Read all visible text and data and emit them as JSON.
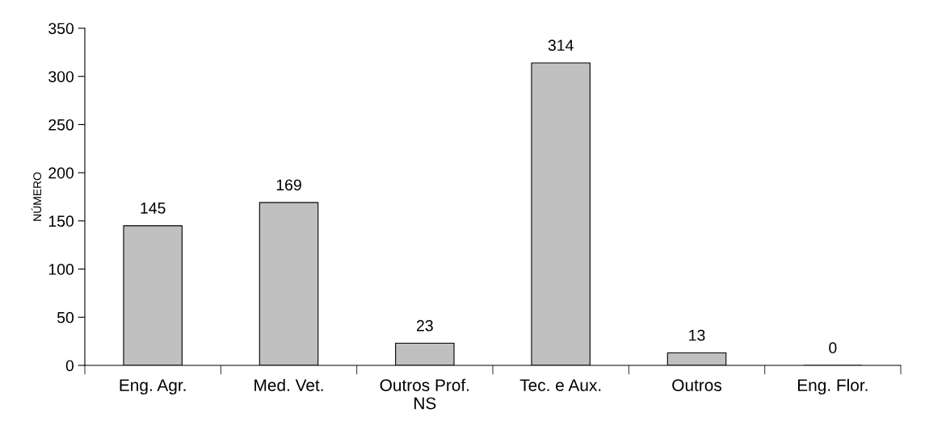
{
  "chart_data": {
    "type": "bar",
    "ylabel": "NÚMERO",
    "categories": [
      "Eng. Agr.",
      "Med. Vet.",
      "Outros Prof.\nNS",
      "Tec. e Aux.",
      "Outros",
      "Eng. Flor."
    ],
    "values": [
      145,
      169,
      23,
      314,
      13,
      0
    ],
    "color": "#c0c0c0",
    "ylim": [
      0,
      350
    ],
    "yticks": [
      0,
      50,
      100,
      150,
      200,
      250,
      300,
      350
    ],
    "grid": false,
    "data_labels": true,
    "legend": false
  }
}
